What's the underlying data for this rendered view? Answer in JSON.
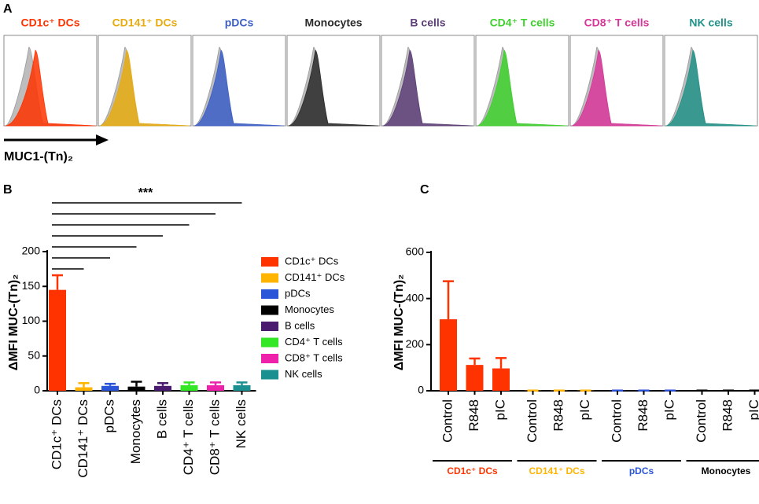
{
  "chart_data": [
    {
      "type": "flow",
      "panel_label": "A",
      "x_label": "MUC1-(Tn)₂",
      "panels": [
        {
          "name": "CD1c⁺ DCs",
          "color": "#ff3300"
        },
        {
          "name": "CD141⁺ DCs",
          "color": "#e8ac10"
        },
        {
          "name": "pDCs",
          "color": "#3d5fc8"
        },
        {
          "name": "Monocytes",
          "color": "#2a2a2a"
        },
        {
          "name": "B cells",
          "color": "#5e3f78"
        },
        {
          "name": "CD4⁺ T cells",
          "color": "#3fd12e"
        },
        {
          "name": "CD8⁺ T cells",
          "color": "#d8379a"
        },
        {
          "name": "NK cells",
          "color": "#22938a"
        }
      ]
    },
    {
      "type": "bar",
      "panel_label": "B",
      "y_label": "ΔMFI MUC-(Tn)₂",
      "annotation": "***",
      "categories": [
        "CD1c⁺ DCs",
        "CD141⁺ DCs",
        "pDCs",
        "Monocytes",
        "B cells",
        "CD4⁺ T cells",
        "CD8⁺ T cells",
        "NK cells"
      ],
      "values": [
        145,
        5,
        7,
        6,
        7,
        8,
        8,
        8
      ],
      "errors": [
        21,
        6,
        3,
        7,
        4,
        4,
        4,
        4
      ],
      "colors": [
        "#ff3300",
        "#ffb400",
        "#2b55d8",
        "#000000",
        "#4a1a6e",
        "#33e626",
        "#ee22aa",
        "#1a9090"
      ],
      "ylim": [
        0,
        200
      ],
      "yticks": [
        0,
        50,
        100,
        150,
        200
      ]
    },
    {
      "type": "grouped",
      "panel_label": "C",
      "y_label": "ΔMFI MUC-(Tn)₂",
      "categories": [
        "Control",
        "R848",
        "pIC",
        "Control",
        "R848",
        "pIC",
        "Control",
        "R848",
        "pIC",
        "Control",
        "R848",
        "pIC"
      ],
      "values": [
        310,
        112,
        97,
        1,
        1,
        1,
        1,
        1,
        1,
        1,
        1,
        1
      ],
      "errors": [
        165,
        28,
        45,
        0,
        0,
        0,
        0,
        0,
        0,
        0,
        0,
        0
      ],
      "groups": [
        {
          "name": "CD1c⁺ DCs",
          "color": "#ff3300"
        },
        {
          "name": "CD141⁺ DCs",
          "color": "#ffb400"
        },
        {
          "name": "pDCs",
          "color": "#2b55d8"
        },
        {
          "name": "Monocytes",
          "color": "#000000"
        }
      ],
      "ylim": [
        0,
        600
      ],
      "yticks": [
        0,
        200,
        400,
        600
      ]
    }
  ]
}
